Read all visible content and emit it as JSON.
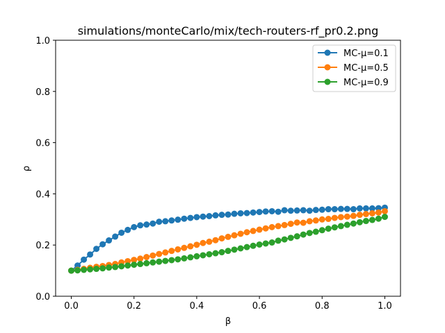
{
  "chart_data": {
    "type": "line",
    "title": "simulations/monteCarlo/mix/tech-routers-rf_pr0.2.png",
    "xlabel": "β",
    "ylabel": "ρ",
    "xlim": [
      -0.05,
      1.05
    ],
    "ylim": [
      0.0,
      1.0
    ],
    "xticks": [
      "0.0",
      "0.2",
      "0.4",
      "0.6",
      "0.8",
      "1.0"
    ],
    "yticks": [
      "0.0",
      "0.2",
      "0.4",
      "0.6",
      "0.8",
      "1.0"
    ],
    "grid": false,
    "legend_position": "top-right",
    "x": [
      0.0,
      0.02,
      0.04,
      0.06,
      0.08,
      0.1,
      0.12,
      0.14,
      0.16,
      0.18,
      0.2,
      0.22,
      0.24,
      0.26,
      0.28,
      0.3,
      0.32,
      0.34,
      0.36,
      0.38,
      0.4,
      0.42,
      0.44,
      0.46,
      0.48,
      0.5,
      0.52,
      0.54,
      0.56,
      0.58,
      0.6,
      0.62,
      0.64,
      0.66,
      0.68,
      0.7,
      0.72,
      0.74,
      0.76,
      0.78,
      0.8,
      0.82,
      0.84,
      0.86,
      0.88,
      0.9,
      0.92,
      0.94,
      0.96,
      0.98,
      1.0
    ],
    "series": [
      {
        "name": "MC-μ=0.1",
        "color": "#1f77b4",
        "values": [
          0.1,
          0.12,
          0.143,
          0.163,
          0.185,
          0.203,
          0.218,
          0.233,
          0.248,
          0.259,
          0.27,
          0.277,
          0.28,
          0.284,
          0.291,
          0.293,
          0.296,
          0.299,
          0.303,
          0.306,
          0.309,
          0.311,
          0.313,
          0.316,
          0.318,
          0.319,
          0.322,
          0.324,
          0.325,
          0.327,
          0.329,
          0.331,
          0.332,
          0.33,
          0.336,
          0.334,
          0.335,
          0.336,
          0.334,
          0.337,
          0.338,
          0.34,
          0.34,
          0.341,
          0.341,
          0.34,
          0.343,
          0.343,
          0.343,
          0.344,
          0.346
        ]
      },
      {
        "name": "MC-μ=0.5",
        "color": "#ff7f0e",
        "values": [
          0.1,
          0.103,
          0.107,
          0.111,
          0.115,
          0.118,
          0.122,
          0.126,
          0.132,
          0.137,
          0.142,
          0.147,
          0.153,
          0.159,
          0.165,
          0.171,
          0.177,
          0.183,
          0.189,
          0.195,
          0.201,
          0.208,
          0.213,
          0.219,
          0.226,
          0.232,
          0.238,
          0.244,
          0.25,
          0.255,
          0.26,
          0.265,
          0.27,
          0.274,
          0.278,
          0.283,
          0.288,
          0.287,
          0.293,
          0.296,
          0.3,
          0.302,
          0.306,
          0.309,
          0.311,
          0.314,
          0.318,
          0.321,
          0.324,
          0.327,
          0.332
        ]
      },
      {
        "name": "MC-μ=0.9",
        "color": "#2ca02c",
        "values": [
          0.1,
          0.101,
          0.103,
          0.105,
          0.107,
          0.109,
          0.112,
          0.114,
          0.117,
          0.12,
          0.123,
          0.126,
          0.129,
          0.132,
          0.135,
          0.138,
          0.141,
          0.144,
          0.148,
          0.152,
          0.156,
          0.16,
          0.164,
          0.168,
          0.172,
          0.177,
          0.182,
          0.187,
          0.192,
          0.197,
          0.202,
          0.206,
          0.21,
          0.217,
          0.222,
          0.228,
          0.234,
          0.241,
          0.247,
          0.252,
          0.258,
          0.264,
          0.269,
          0.274,
          0.279,
          0.284,
          0.289,
          0.294,
          0.298,
          0.303,
          0.31
        ]
      }
    ]
  }
}
